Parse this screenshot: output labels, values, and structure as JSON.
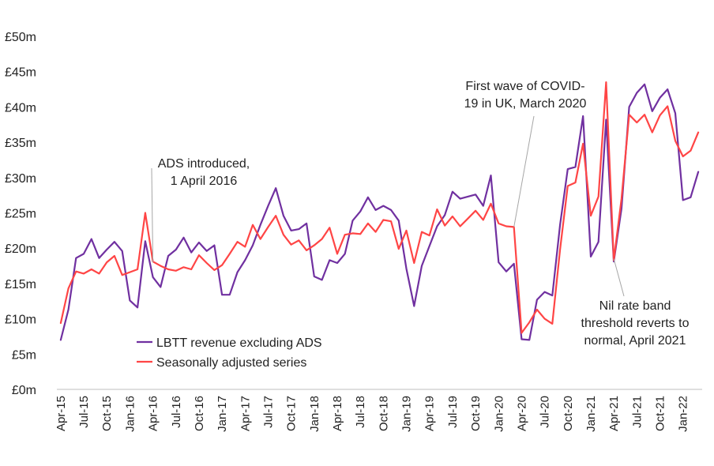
{
  "chart_data": {
    "type": "line",
    "title": "",
    "xlabel": "",
    "ylabel": "",
    "ylim": [
      0,
      50
    ],
    "yticks": [
      0,
      5,
      10,
      15,
      20,
      25,
      30,
      35,
      40,
      45,
      50
    ],
    "ytick_labels": [
      "£0m",
      "£5m",
      "£10m",
      "£15m",
      "£20m",
      "£25m",
      "£30m",
      "£35m",
      "£40m",
      "£45m",
      "£50m"
    ],
    "grid": false,
    "legend_position": "bottom-left",
    "x": [
      "Apr-15",
      "May-15",
      "Jun-15",
      "Jul-15",
      "Aug-15",
      "Sep-15",
      "Oct-15",
      "Nov-15",
      "Dec-15",
      "Jan-16",
      "Feb-16",
      "Mar-16",
      "Apr-16",
      "May-16",
      "Jun-16",
      "Jul-16",
      "Aug-16",
      "Sep-16",
      "Oct-16",
      "Nov-16",
      "Dec-16",
      "Jan-17",
      "Feb-17",
      "Mar-17",
      "Apr-17",
      "May-17",
      "Jun-17",
      "Jul-17",
      "Aug-17",
      "Sep-17",
      "Oct-17",
      "Nov-17",
      "Dec-17",
      "Jan-18",
      "Feb-18",
      "Mar-18",
      "Apr-18",
      "May-18",
      "Jun-18",
      "Jul-18",
      "Aug-18",
      "Sep-18",
      "Oct-18",
      "Nov-18",
      "Dec-18",
      "Jan-19",
      "Feb-19",
      "Mar-19",
      "Apr-19",
      "May-19",
      "Jun-19",
      "Jul-19",
      "Aug-19",
      "Sep-19",
      "Oct-19",
      "Nov-19",
      "Dec-19",
      "Jan-20",
      "Feb-20",
      "Mar-20",
      "Apr-20",
      "May-20",
      "Jun-20",
      "Jul-20",
      "Aug-20",
      "Sep-20",
      "Oct-20",
      "Nov-20",
      "Dec-20",
      "Jan-21",
      "Feb-21",
      "Mar-21",
      "Apr-21",
      "May-21",
      "Jun-21",
      "Jul-21",
      "Aug-21",
      "Sep-21",
      "Oct-21",
      "Nov-21",
      "Dec-21",
      "Jan-22",
      "Feb-22",
      "Mar-22"
    ],
    "x_tick_labels": [
      "Apr-15",
      "Jul-15",
      "Oct-15",
      "Jan-16",
      "Apr-16",
      "Jul-16",
      "Oct-16",
      "Jan-17",
      "Apr-17",
      "Jul-17",
      "Oct-17",
      "Jan-18",
      "Apr-18",
      "Jul-18",
      "Oct-18",
      "Jan-19",
      "Apr-19",
      "Jul-19",
      "Oct-19",
      "Jan-20",
      "Apr-20",
      "Jul-20",
      "Oct-20",
      "Jan-21",
      "Apr-21",
      "Jul-21",
      "Oct-21",
      "Jan-22"
    ],
    "series": [
      {
        "name": "LBTT revenue excluding ADS",
        "color": "#7030a0",
        "values": [
          7.0,
          11.3,
          18.6,
          19.2,
          21.3,
          18.6,
          19.8,
          20.9,
          19.6,
          12.6,
          11.6,
          21.0,
          15.9,
          14.5,
          18.9,
          19.8,
          21.5,
          19.4,
          20.8,
          19.6,
          20.4,
          13.4,
          13.4,
          16.6,
          18.3,
          20.4,
          23.3,
          26.0,
          28.5,
          24.6,
          22.5,
          22.7,
          23.5,
          16.0,
          15.5,
          18.3,
          17.9,
          19.2,
          23.9,
          25.2,
          27.2,
          25.4,
          26.0,
          25.4,
          23.9,
          17.1,
          11.8,
          17.5,
          20.3,
          23.1,
          24.7,
          28.0,
          27.0,
          27.3,
          27.6,
          26.0,
          30.3,
          18.0,
          16.7,
          17.8,
          7.1,
          7.0,
          12.7,
          13.8,
          13.3,
          23.3,
          31.2,
          31.5,
          38.7,
          18.8,
          20.9,
          38.2,
          18.1,
          25.6,
          40.0,
          42.0,
          43.2,
          39.4,
          41.3,
          42.5,
          39.1,
          26.8,
          27.2,
          30.8
        ]
      },
      {
        "name": "Seasonally adjusted series",
        "color": "#ff4545",
        "values": [
          9.4,
          14.3,
          16.7,
          16.4,
          17.0,
          16.4,
          18.0,
          18.9,
          16.2,
          16.6,
          17.0,
          25.0,
          18.1,
          17.5,
          17.0,
          16.8,
          17.3,
          17.0,
          19.0,
          17.9,
          16.9,
          17.6,
          19.2,
          20.9,
          20.2,
          23.3,
          21.3,
          23.0,
          24.6,
          21.9,
          20.5,
          21.1,
          19.7,
          20.4,
          21.3,
          22.9,
          19.2,
          21.9,
          22.1,
          22.0,
          23.5,
          22.3,
          24.0,
          23.8,
          19.9,
          22.5,
          17.9,
          22.3,
          21.8,
          25.5,
          23.2,
          24.5,
          23.1,
          24.2,
          25.3,
          24.0,
          26.3,
          23.5,
          23.1,
          23.0,
          8.0,
          9.5,
          11.3,
          10.0,
          9.3,
          19.8,
          28.8,
          29.3,
          34.8,
          24.6,
          27.3,
          43.5,
          18.3,
          27.0,
          38.9,
          37.8,
          38.9,
          36.4,
          38.8,
          40.1,
          35.2,
          33.0,
          33.8,
          36.4
        ]
      }
    ],
    "legend": [
      {
        "label": "LBTT revenue excluding ADS",
        "color": "#7030a0"
      },
      {
        "label": "Seasonally adjusted series",
        "color": "#ff4545"
      }
    ],
    "annotations": [
      {
        "lines": [
          "ADS introduced,",
          "1 April 2016"
        ],
        "x": "Apr-16",
        "y": 18.0
      },
      {
        "lines": [
          "First wave of COVID-",
          "19 in UK, March 2020"
        ],
        "x": "Mar-20",
        "y": 23.0
      },
      {
        "lines": [
          "Nil rate band",
          "threshold reverts to",
          "normal, April 2021"
        ],
        "x": "Apr-21",
        "y": 18.5
      }
    ]
  }
}
